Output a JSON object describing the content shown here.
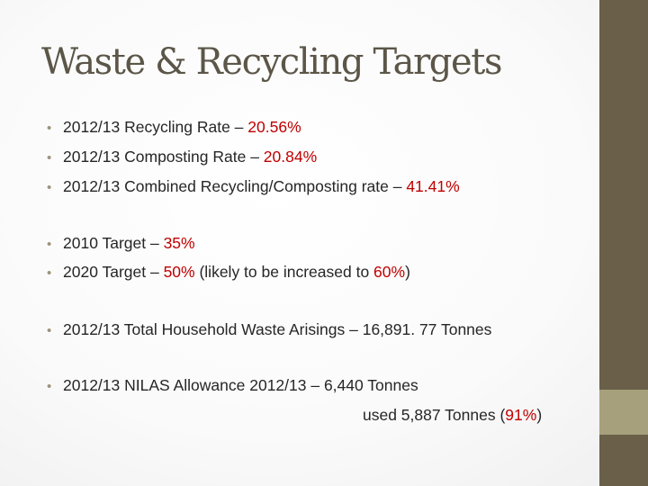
{
  "title": "Waste & Recycling Targets",
  "rates": {
    "recycling": {
      "label": "2012/13 Recycling Rate – ",
      "value": "20.56%"
    },
    "composting": {
      "label": "2012/13 Composting Rate – ",
      "value": "20.84%"
    },
    "combined": {
      "label": "2012/13 Combined Recycling/Composting rate – ",
      "value": "41.41%"
    }
  },
  "targets": {
    "t2010": {
      "label": "2010 Target – ",
      "value": "35%"
    },
    "t2020": {
      "label": "2020 Target – ",
      "value": "50%",
      "note_open": " (likely to be increased to ",
      "note_value": "60%",
      "note_close": ")"
    }
  },
  "waste": {
    "text": "2012/13 Total Household Waste Arisings – 16,891. 77 Tonnes"
  },
  "nilas": {
    "text": "2012/13 NILAS Allowance 2012/13 – 6,440 Tonnes",
    "used_prefix": "used 5,887 Tonnes (",
    "used_value": "91%",
    "used_suffix": ")"
  },
  "bullet_char": "•",
  "colors": {
    "highlight": "#c00000",
    "title": "#5b5648",
    "sidebar_dark": "#6a5f48",
    "sidebar_light": "#a6a17c"
  }
}
